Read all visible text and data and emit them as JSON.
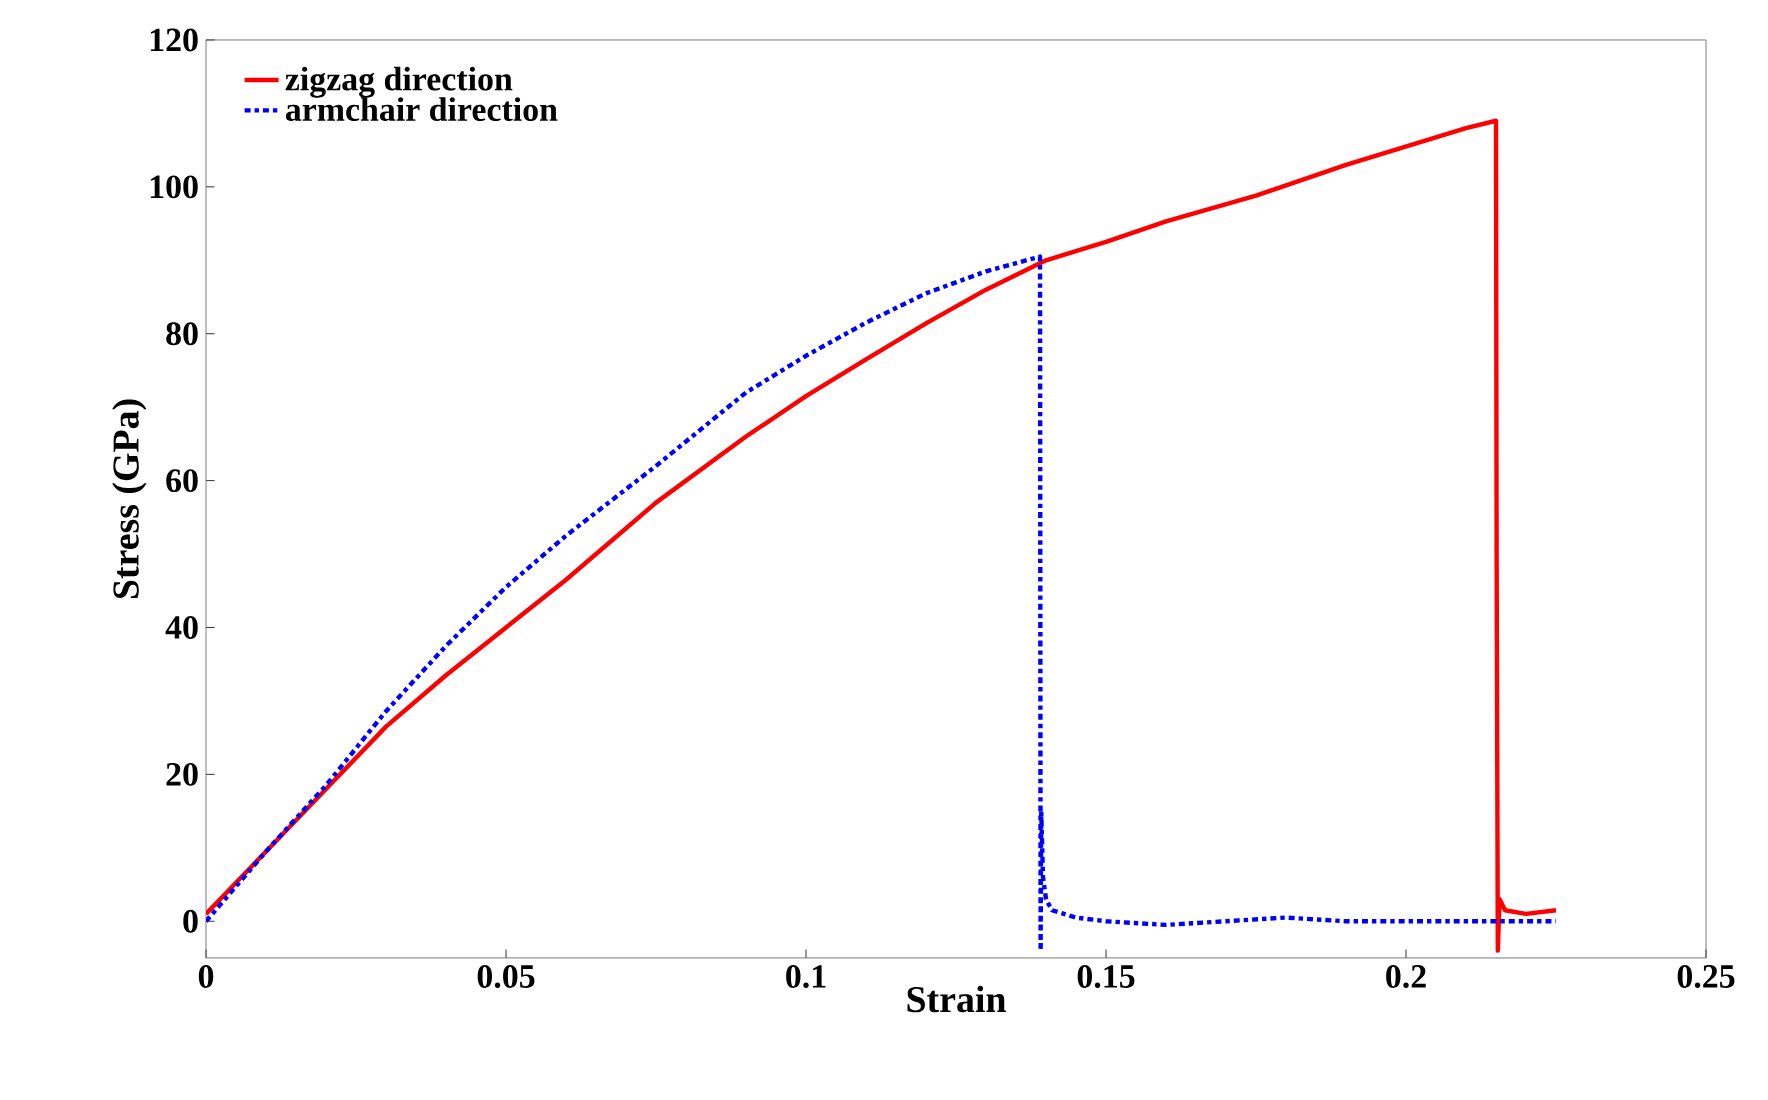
{
  "chart_data": {
    "type": "line",
    "xlabel": "Strain",
    "ylabel": "Stress (GPa)",
    "xlim": [
      0,
      0.25
    ],
    "ylim": [
      -5,
      120
    ],
    "xticks": [
      0,
      0.05,
      0.1,
      0.15,
      0.2,
      0.25
    ],
    "yticks": [
      0,
      20,
      40,
      60,
      80,
      100,
      120
    ],
    "grid": false,
    "legend": "top left",
    "marker": "none",
    "series": [
      {
        "name": "zigzag direction",
        "color": "#ff0000",
        "line_style": "solid",
        "x": [
          0,
          0.01,
          0.02,
          0.03,
          0.04,
          0.05,
          0.06,
          0.075,
          0.09,
          0.1,
          0.11,
          0.12,
          0.13,
          0.14,
          0.15,
          0.16,
          0.175,
          0.19,
          0.2,
          0.21,
          0.215,
          0.2151,
          0.2153,
          0.2156,
          0.2165,
          0.22,
          0.225
        ],
        "values": [
          1,
          9.5,
          18,
          26.5,
          33.5,
          40,
          46.5,
          57,
          66,
          71.5,
          76.5,
          81.4,
          86,
          90,
          92.5,
          95.3,
          98.8,
          103,
          105.5,
          108,
          109,
          50,
          -4,
          3,
          1.5,
          1,
          1.5
        ]
      },
      {
        "name": "armchair direction",
        "color": "#0000ff",
        "line_style": "dashdot",
        "x": [
          0,
          0.01,
          0.02,
          0.03,
          0.04,
          0.05,
          0.06,
          0.075,
          0.09,
          0.1,
          0.11,
          0.12,
          0.13,
          0.139,
          0.1391,
          0.1392,
          0.1395,
          0.14,
          0.141,
          0.145,
          0.15,
          0.16,
          0.17,
          0.18,
          0.19,
          0.2,
          0.21,
          0.22,
          0.225
        ],
        "values": [
          0,
          9.5,
          18.5,
          28.6,
          37.5,
          45.5,
          52.5,
          62,
          72,
          77,
          81.5,
          85.5,
          88.5,
          90.5,
          -4,
          15,
          6,
          3,
          1.5,
          0.5,
          0,
          -0.5,
          0,
          0.5,
          0,
          0,
          0,
          0,
          0
        ]
      }
    ]
  }
}
